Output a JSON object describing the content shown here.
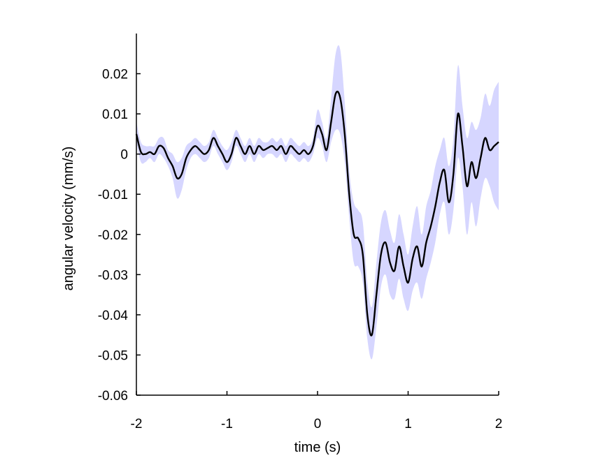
{
  "chart_data": {
    "type": "line",
    "xlabel": "time (s)",
    "ylabel": "angular velocity (mm/s)",
    "xlim": [
      -2,
      2
    ],
    "ylim": [
      -0.06,
      0.03
    ],
    "x_ticks": [
      -2,
      -1,
      0,
      1,
      2
    ],
    "x_tick_labels": [
      "-2",
      "-1",
      "0",
      "1",
      "2"
    ],
    "y_ticks": [
      -0.06,
      -0.05,
      -0.04,
      -0.03,
      -0.02,
      -0.01,
      0,
      0.01,
      0.02
    ],
    "y_tick_labels": [
      "-0.06",
      "-0.05",
      "-0.04",
      "-0.03",
      "-0.02",
      "-0.01",
      "0",
      "0.01",
      "0.02"
    ],
    "grid": false,
    "colors": {
      "line": "#000000",
      "band": "#d6d6ff"
    },
    "series": [
      {
        "style": "mean line with shaded confidence band",
        "x": [
          -2.0,
          -1.95,
          -1.9,
          -1.85,
          -1.8,
          -1.75,
          -1.7,
          -1.65,
          -1.6,
          -1.55,
          -1.5,
          -1.45,
          -1.4,
          -1.35,
          -1.3,
          -1.25,
          -1.2,
          -1.15,
          -1.1,
          -1.05,
          -1.0,
          -0.95,
          -0.9,
          -0.85,
          -0.8,
          -0.75,
          -0.7,
          -0.65,
          -0.6,
          -0.55,
          -0.5,
          -0.45,
          -0.4,
          -0.35,
          -0.3,
          -0.25,
          -0.2,
          -0.15,
          -0.1,
          -0.05,
          0.0,
          0.05,
          0.1,
          0.15,
          0.2,
          0.25,
          0.3,
          0.35,
          0.4,
          0.45,
          0.5,
          0.55,
          0.6,
          0.65,
          0.7,
          0.75,
          0.8,
          0.85,
          0.9,
          0.95,
          1.0,
          1.05,
          1.1,
          1.15,
          1.2,
          1.25,
          1.3,
          1.35,
          1.4,
          1.45,
          1.5,
          1.55,
          1.6,
          1.65,
          1.7,
          1.75,
          1.8,
          1.85,
          1.9,
          1.95,
          2.0
        ],
        "y": [
          0.005,
          0.0005,
          0.0,
          0.0005,
          0.0,
          0.002,
          0.0015,
          -0.001,
          -0.003,
          -0.006,
          -0.005,
          -0.001,
          0.001,
          0.002,
          0.001,
          0.0,
          0.001,
          0.004,
          0.002,
          0.0,
          -0.002,
          0.0,
          0.004,
          0.002,
          0.0,
          0.002,
          0.0,
          0.002,
          0.001,
          0.0015,
          0.002,
          0.001,
          0.002,
          0.0,
          0.002,
          0.001,
          0.0,
          0.001,
          0.0,
          0.002,
          0.007,
          0.005,
          0.001,
          0.008,
          0.015,
          0.014,
          0.005,
          -0.01,
          -0.02,
          -0.021,
          -0.025,
          -0.04,
          -0.045,
          -0.035,
          -0.025,
          -0.022,
          -0.027,
          -0.029,
          -0.023,
          -0.028,
          -0.032,
          -0.026,
          -0.023,
          -0.028,
          -0.022,
          -0.018,
          -0.013,
          -0.007,
          -0.004,
          -0.012,
          -0.005,
          0.01,
          0.002,
          -0.008,
          -0.002,
          -0.006,
          -0.001,
          0.004,
          0.001,
          0.002,
          0.003
        ],
        "lower": [
          0.003,
          -0.002,
          -0.002,
          -0.001,
          -0.002,
          0.0,
          -0.001,
          -0.003,
          -0.006,
          -0.011,
          -0.009,
          -0.004,
          -0.001,
          0.0,
          -0.001,
          -0.002,
          -0.001,
          0.002,
          0.0,
          -0.002,
          -0.004,
          -0.002,
          0.002,
          0.0,
          -0.002,
          0.0,
          -0.002,
          0.0,
          -0.001,
          0.0,
          0.0,
          -0.001,
          0.0,
          -0.002,
          0.0,
          -0.001,
          -0.002,
          -0.001,
          -0.002,
          0.0,
          0.004,
          0.002,
          -0.002,
          0.003,
          0.006,
          0.005,
          -0.002,
          -0.016,
          -0.027,
          -0.028,
          -0.032,
          -0.046,
          -0.051,
          -0.043,
          -0.033,
          -0.03,
          -0.035,
          -0.036,
          -0.031,
          -0.036,
          -0.039,
          -0.034,
          -0.032,
          -0.036,
          -0.031,
          -0.027,
          -0.022,
          -0.015,
          -0.012,
          -0.02,
          -0.014,
          -0.001,
          -0.008,
          -0.02,
          -0.012,
          -0.018,
          -0.011,
          -0.006,
          -0.008,
          -0.012,
          -0.014
        ],
        "upper": [
          0.008,
          0.003,
          0.002,
          0.002,
          0.002,
          0.004,
          0.004,
          0.001,
          0.0,
          -0.002,
          -0.001,
          0.002,
          0.003,
          0.004,
          0.003,
          0.002,
          0.003,
          0.006,
          0.004,
          0.002,
          0.001,
          0.003,
          0.006,
          0.004,
          0.002,
          0.004,
          0.002,
          0.004,
          0.003,
          0.003,
          0.004,
          0.003,
          0.004,
          0.002,
          0.004,
          0.003,
          0.002,
          0.003,
          0.002,
          0.004,
          0.011,
          0.008,
          0.004,
          0.014,
          0.025,
          0.026,
          0.013,
          -0.004,
          -0.012,
          -0.014,
          -0.017,
          -0.032,
          -0.038,
          -0.027,
          -0.017,
          -0.014,
          -0.019,
          -0.022,
          -0.015,
          -0.02,
          -0.025,
          -0.018,
          -0.013,
          -0.02,
          -0.013,
          -0.009,
          -0.003,
          0.001,
          0.004,
          -0.003,
          0.004,
          0.022,
          0.012,
          0.004,
          0.008,
          0.006,
          0.009,
          0.015,
          0.012,
          0.016,
          0.018
        ]
      }
    ]
  }
}
